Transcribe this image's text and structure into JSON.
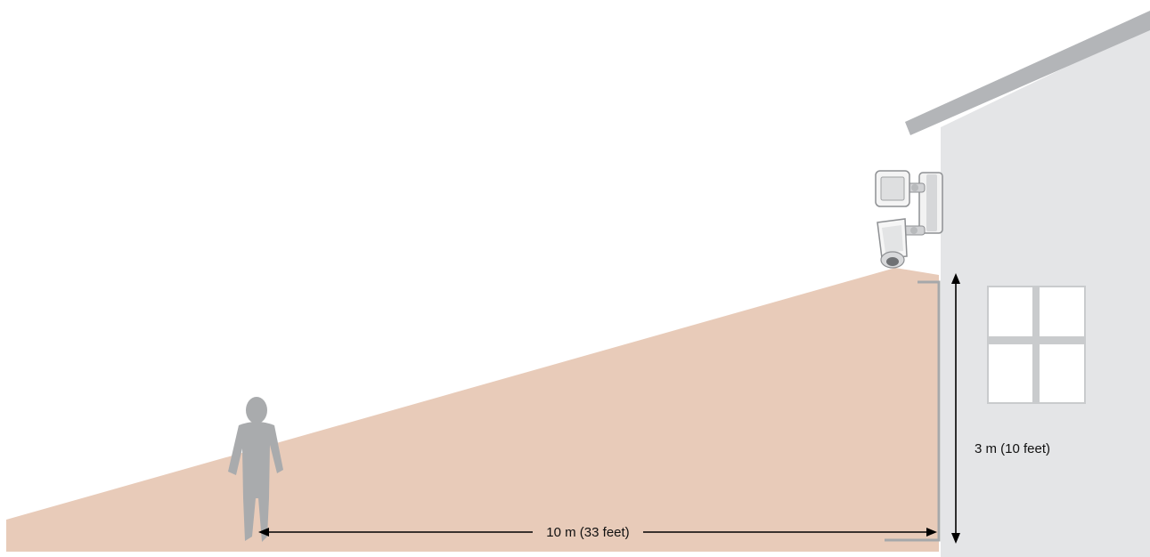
{
  "diagram": {
    "horizontal_distance_label": "10 m (33 feet)",
    "mounting_height_label": "3 m (10 feet)",
    "detection_zone_color": "#e8cbb9",
    "house_wall_color": "#e4e5e7",
    "roof_color": "#b3b5b8",
    "person_color": "#a9abad",
    "window_pane_color": "#ffffff",
    "window_frame_color": "#c9cbcd",
    "arrow_color": "#000000"
  }
}
